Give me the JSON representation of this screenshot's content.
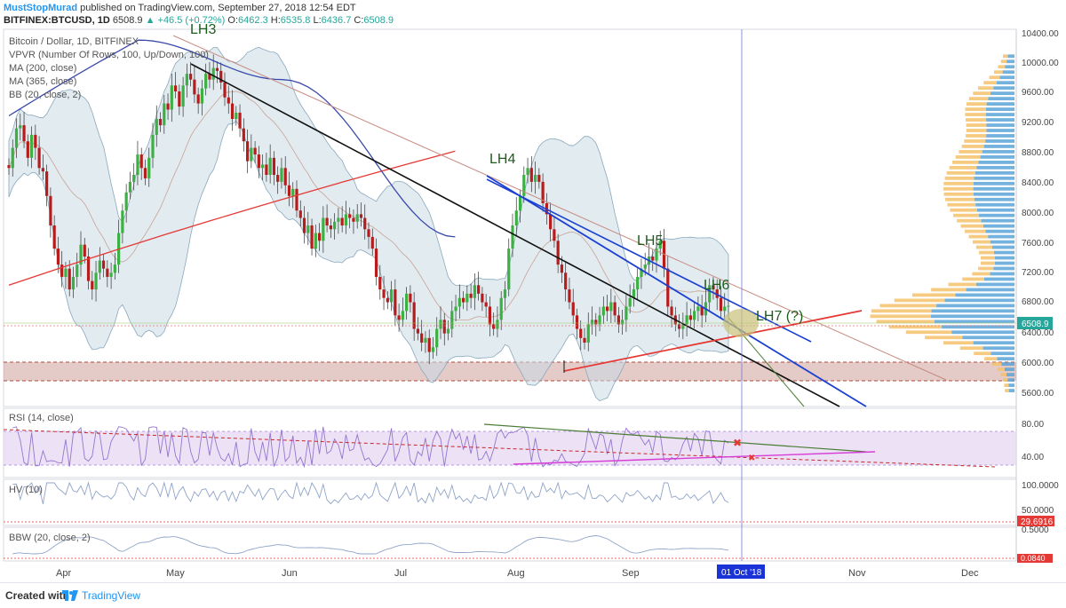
{
  "header": {
    "author": "MustStopMurad",
    "published": "published on TradingView.com, September 27, 2018 12:54 EDT",
    "symbol": "BITFINEX:BTCUSD, 1D",
    "price": "6508.9",
    "change": "+46.5 (+0.72%)",
    "change_icon": "up-triangle-icon",
    "o_label": "O:",
    "o_value": "6462.3",
    "h_label": "H:",
    "h_value": "6535.8",
    "l_label": "L:",
    "l_value": "6436.7",
    "c_label": "C:",
    "c_value": "6508.9"
  },
  "legend": [
    "Bitcoin / Dollar, 1D, BITFINEX",
    "VPVR (Number Of Rows, 100, Up/Down, 100)",
    "MA (200, close)",
    "MA (365, close)",
    "BB (20, close, 2)"
  ],
  "price_axis": [
    "10400.00",
    "10000.00",
    "9600.00",
    "9200.00",
    "8800.00",
    "8400.00",
    "8000.00",
    "7600.00",
    "7200.00",
    "6800.00",
    "6400.00",
    "6000.00",
    "5600.00"
  ],
  "last_price_tag": "6508.9",
  "annotations": [
    "LH3",
    "LH4",
    "LH5",
    "LH6",
    "LH7 (?)"
  ],
  "rsi": {
    "label": "RSI (14, close)",
    "axis": [
      "80.00",
      "40.00"
    ]
  },
  "hv": {
    "label": "HV (10)",
    "axis": [
      "100.0000",
      "50.0000"
    ],
    "value_tag": "29.6916"
  },
  "bbw": {
    "label": "BBW (20, close, 2)",
    "axis": [
      "0.5000"
    ],
    "value_tag": "0.0840"
  },
  "time_axis": [
    "Apr",
    "May",
    "Jun",
    "Jul",
    "Aug",
    "Sep",
    "Nov",
    "Dec"
  ],
  "cursor_date": "01 Oct '18",
  "footer": {
    "created": "Created with",
    "brand": "TradingView",
    "logo_icon": "tradingview-logo-icon"
  },
  "colors": {
    "up": "#26a69a",
    "candle_up": "#3cb043",
    "candle_down": "#b71c1c",
    "ma200": "#e53935",
    "ma365": "#3949ab",
    "bb_fill": "#c9dbe3",
    "rsi_band": "#e7d7f3",
    "vpvr_up": "#5aa4d8",
    "vpvr_down": "#f4c26b",
    "accent": "#2196f3",
    "tag_red": "#e53935",
    "tag_green": "#26a69a"
  },
  "chart_data": {
    "type": "candlestick",
    "title": "Bitcoin / Dollar, 1D, BITFINEX",
    "xlabel": "",
    "ylabel": "",
    "x_ticks": [
      "Apr",
      "May",
      "Jun",
      "Jul",
      "Aug",
      "Sep",
      "Nov",
      "Dec"
    ],
    "ylim": [
      5450,
      10600
    ],
    "y_log": true,
    "last_close": 6508.9,
    "closes": [
      8300,
      8600,
      8900,
      8950,
      8700,
      8450,
      8800,
      8600,
      8300,
      8250,
      7900,
      7500,
      7200,
      7000,
      6850,
      6950,
      6700,
      6850,
      7000,
      7250,
      7100,
      6800,
      6700,
      6900,
      7050,
      6950,
      6850,
      6900,
      7000,
      7400,
      7700,
      7950,
      8100,
      8200,
      8500,
      8300,
      8150,
      8450,
      8800,
      9050,
      8950,
      9300,
      9200,
      9600,
      9500,
      9250,
      9600,
      9800,
      9700,
      9450,
      9300,
      9550,
      9800,
      9700,
      9900,
      9850,
      9650,
      9400,
      9300,
      9050,
      9150,
      8900,
      8700,
      8400,
      8600,
      8500,
      8300,
      8350,
      8200,
      8450,
      8200,
      8100,
      8300,
      8050,
      7900,
      8000,
      7700,
      7600,
      7400,
      7500,
      7200,
      7400,
      7300,
      7600,
      7500,
      7450,
      7550,
      7600,
      7500,
      7650,
      7600,
      7550,
      7650,
      7600,
      7450,
      7350,
      7200,
      6850,
      6700,
      6600,
      6550,
      6700,
      6400,
      6350,
      6450,
      6650,
      6550,
      6250,
      6200,
      6100,
      6150,
      6000,
      6050,
      6250,
      6350,
      6200,
      6250,
      6450,
      6500,
      6600,
      6550,
      6650,
      6600,
      6750,
      6650,
      6550,
      6500,
      6300,
      6250,
      6350,
      6600,
      6700,
      7200,
      7500,
      7700,
      7900,
      8200,
      8300,
      8100,
      8200,
      8100,
      7800,
      7650,
      7450,
      7300,
      7000,
      6900,
      6700,
      6550,
      6400,
      6250,
      6150,
      6100,
      6300,
      6350,
      6300,
      6400,
      6500,
      6450,
      6550,
      6400,
      6300,
      6350,
      6500,
      6600,
      6700,
      6850,
      6950,
      7000,
      7100,
      7050,
      7200,
      7300,
      6950,
      6500,
      6400,
      6300,
      6250,
      6300,
      6400,
      6350,
      6450,
      6500,
      6400,
      6550,
      6750,
      6700,
      6600,
      6450,
      6500,
      6508.9
    ],
    "series": [
      {
        "name": "MA (200, close)",
        "x": [
          0,
          0.62
        ],
        "values": [
          6750,
          8550
        ]
      },
      {
        "name": "MA (365, close)",
        "x": [
          0,
          0.18,
          0.38,
          0.62
        ],
        "values": [
          9100,
          10400,
          9700,
          7350
        ]
      }
    ],
    "volume_profile_visible_range": [
      5600,
      10100
    ],
    "rsi_levels": [
      70,
      30
    ],
    "legend_position": "top-left",
    "grid": false
  }
}
